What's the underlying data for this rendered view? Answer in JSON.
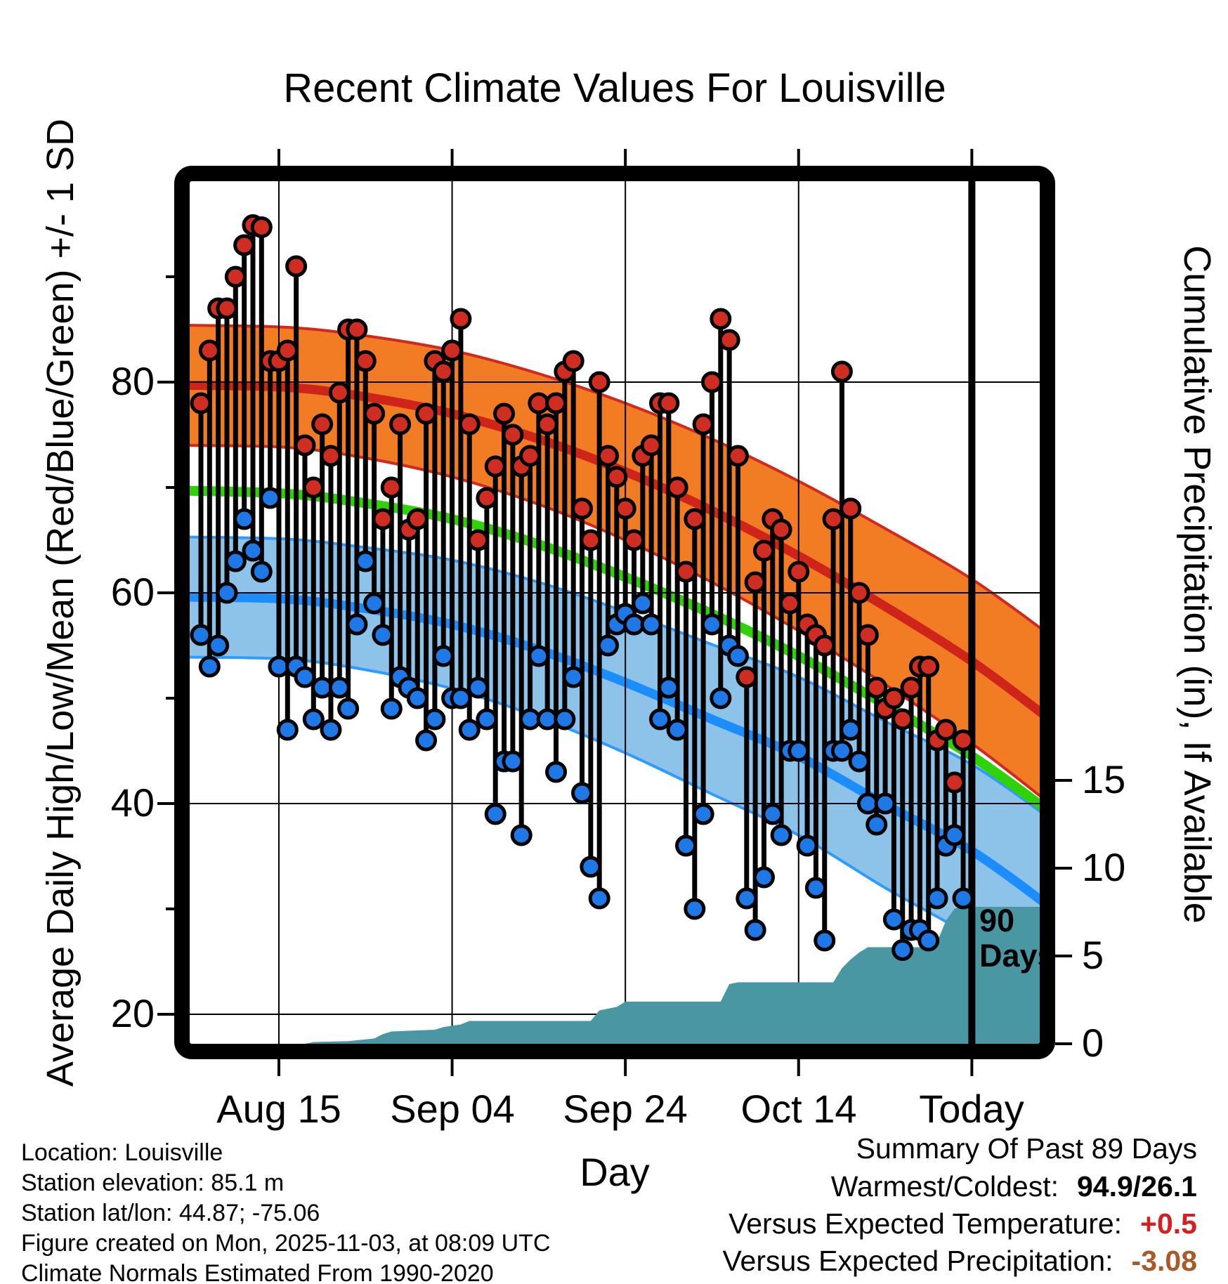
{
  "title": "Recent Climate Values For Louisville",
  "axes": {
    "y_left_title": "Average Daily High/Low/Mean (Red/Blue/Green) +/- 1 SD",
    "y_right_title": "Cumulative Precipitation (in), If Available",
    "x_title": "Day",
    "x_tick_labels": [
      "Aug 15",
      "Sep 04",
      "Sep 24",
      "Oct 14",
      "Today"
    ],
    "y_left_tick_labels": [
      "80",
      "60",
      "40",
      "20"
    ],
    "y_right_tick_labels": [
      "15",
      "10",
      "5",
      "0"
    ]
  },
  "annotation_90_days": {
    "line1": "90",
    "line2": "Days"
  },
  "footer_lines": [
    "Location: Louisville",
    "Station elevation: 85.1 m",
    "Station lat/lon: 44.87; -75.06",
    "Figure created on Mon, 2025-11-03, at 08:09 UTC",
    "Climate Normals Estimated From 1990-2020"
  ],
  "summary": {
    "heading": "Summary Of Past 89 Days",
    "warmest_coldest_label": "Warmest/Coldest:",
    "warmest_coldest_value": "94.9/26.1",
    "vs_temp_label": "Versus Expected Temperature:",
    "vs_temp_value": "+0.5",
    "vs_precip_label": "Versus Expected Precipitation:",
    "vs_precip_value": "-3.08"
  },
  "colors": {
    "high_band_fill": "#f27c24",
    "high_line": "#cf2419",
    "high_band_edge": "#d2281e",
    "mean_line": "#2fd305",
    "low_band_fill": "#8ec3e9",
    "low_line": "#1c8dfc",
    "low_band_edge": "#2f9bff",
    "precip_fill": "#4997a2",
    "dot_high": "#cf2d22",
    "dot_low": "#1e78e6",
    "stem": "#000000",
    "anomaly_warm": "#d42020",
    "anomaly_dry": "#a85a28"
  },
  "chart_data": {
    "type": "climate-stems+normal-bands+cumulative-precip-area",
    "x_axis": {
      "label": "Day",
      "tick_labels": [
        "Aug 15",
        "Sep 04",
        "Sep 24",
        "Oct 14",
        "Today"
      ],
      "span_days": 90
    },
    "y_temp_axis": {
      "ticks": [
        80,
        60,
        40,
        20
      ],
      "minor_ticks": [
        90,
        70,
        50,
        30
      ],
      "range": [
        17,
        99
      ]
    },
    "y_precip_axis": {
      "ticks": [
        15,
        10,
        5,
        0
      ],
      "units": "in"
    },
    "days": [
      {
        "date": "Aug 06",
        "high": 78,
        "low": 56
      },
      {
        "date": "Aug 07",
        "high": 83,
        "low": 53
      },
      {
        "date": "Aug 08",
        "high": 87,
        "low": 55
      },
      {
        "date": "Aug 09",
        "high": 87,
        "low": 60
      },
      {
        "date": "Aug 10",
        "high": 90,
        "low": 63
      },
      {
        "date": "Aug 11",
        "high": 93,
        "low": 67
      },
      {
        "date": "Aug 12",
        "high": 94.9,
        "low": 64
      },
      {
        "date": "Aug 13",
        "high": 94.7,
        "low": 62
      },
      {
        "date": "Aug 14",
        "high": 82,
        "low": 69
      },
      {
        "date": "Aug 15",
        "high": 82,
        "low": 53
      },
      {
        "date": "Aug 16",
        "high": 83,
        "low": 47
      },
      {
        "date": "Aug 17",
        "high": 91,
        "low": 53
      },
      {
        "date": "Aug 18",
        "high": 74,
        "low": 52
      },
      {
        "date": "Aug 19",
        "high": 70,
        "low": 48
      },
      {
        "date": "Aug 20",
        "high": 76,
        "low": 51
      },
      {
        "date": "Aug 21",
        "high": 73,
        "low": 47
      },
      {
        "date": "Aug 22",
        "high": 79,
        "low": 51
      },
      {
        "date": "Aug 23",
        "high": 85,
        "low": 49
      },
      {
        "date": "Aug 24",
        "high": 85,
        "low": 57
      },
      {
        "date": "Aug 25",
        "high": 82,
        "low": 63
      },
      {
        "date": "Aug 26",
        "high": 77,
        "low": 59
      },
      {
        "date": "Aug 27",
        "high": 67,
        "low": 56
      },
      {
        "date": "Aug 28",
        "high": 70,
        "low": 49
      },
      {
        "date": "Aug 29",
        "high": 76,
        "low": 52
      },
      {
        "date": "Aug 30",
        "high": 66,
        "low": 51
      },
      {
        "date": "Aug 31",
        "high": 67,
        "low": 50
      },
      {
        "date": "Sep 01",
        "high": 77,
        "low": 46
      },
      {
        "date": "Sep 02",
        "high": 82,
        "low": 48
      },
      {
        "date": "Sep 03",
        "high": 81,
        "low": 54
      },
      {
        "date": "Sep 04",
        "high": 83,
        "low": 50
      },
      {
        "date": "Sep 05",
        "high": 86,
        "low": 50
      },
      {
        "date": "Sep 06",
        "high": 76,
        "low": 47
      },
      {
        "date": "Sep 07",
        "high": 65,
        "low": 51
      },
      {
        "date": "Sep 08",
        "high": 69,
        "low": 48
      },
      {
        "date": "Sep 09",
        "high": 72,
        "low": 39
      },
      {
        "date": "Sep 10",
        "high": 77,
        "low": 44
      },
      {
        "date": "Sep 11",
        "high": 75,
        "low": 44
      },
      {
        "date": "Sep 12",
        "high": 72,
        "low": 37
      },
      {
        "date": "Sep 13",
        "high": 73,
        "low": 48
      },
      {
        "date": "Sep 14",
        "high": 78,
        "low": 54
      },
      {
        "date": "Sep 15",
        "high": 76,
        "low": 48
      },
      {
        "date": "Sep 16",
        "high": 78,
        "low": 43
      },
      {
        "date": "Sep 17",
        "high": 81,
        "low": 48
      },
      {
        "date": "Sep 18",
        "high": 82,
        "low": 52
      },
      {
        "date": "Sep 19",
        "high": 68,
        "low": 41
      },
      {
        "date": "Sep 20",
        "high": 65,
        "low": 34
      },
      {
        "date": "Sep 21",
        "high": 80,
        "low": 31
      },
      {
        "date": "Sep 22",
        "high": 73,
        "low": 55
      },
      {
        "date": "Sep 23",
        "high": 71,
        "low": 57
      },
      {
        "date": "Sep 24",
        "high": 68,
        "low": 58
      },
      {
        "date": "Sep 25",
        "high": 65,
        "low": 57
      },
      {
        "date": "Sep 26",
        "high": 73,
        "low": 59
      },
      {
        "date": "Sep 27",
        "high": 74,
        "low": 57
      },
      {
        "date": "Sep 28",
        "high": 78,
        "low": 48
      },
      {
        "date": "Sep 29",
        "high": 78,
        "low": 51
      },
      {
        "date": "Sep 30",
        "high": 70,
        "low": 47
      },
      {
        "date": "Oct 01",
        "high": 62,
        "low": 36
      },
      {
        "date": "Oct 02",
        "high": 67,
        "low": 30
      },
      {
        "date": "Oct 03",
        "high": 76,
        "low": 39
      },
      {
        "date": "Oct 04",
        "high": 80,
        "low": 57
      },
      {
        "date": "Oct 05",
        "high": 86,
        "low": 50
      },
      {
        "date": "Oct 06",
        "high": 84,
        "low": 55
      },
      {
        "date": "Oct 07",
        "high": 73,
        "low": 54
      },
      {
        "date": "Oct 08",
        "high": 52,
        "low": 31
      },
      {
        "date": "Oct 09",
        "high": 61,
        "low": 28
      },
      {
        "date": "Oct 10",
        "high": 64,
        "low": 33
      },
      {
        "date": "Oct 11",
        "high": 67,
        "low": 39
      },
      {
        "date": "Oct 12",
        "high": 66,
        "low": 37
      },
      {
        "date": "Oct 13",
        "high": 59,
        "low": 45
      },
      {
        "date": "Oct 14",
        "high": 62,
        "low": 45
      },
      {
        "date": "Oct 15",
        "high": 57,
        "low": 36
      },
      {
        "date": "Oct 16",
        "high": 56,
        "low": 32
      },
      {
        "date": "Oct 17",
        "high": 55,
        "low": 27
      },
      {
        "date": "Oct 18",
        "high": 67,
        "low": 45
      },
      {
        "date": "Oct 19",
        "high": 81,
        "low": 45
      },
      {
        "date": "Oct 20",
        "high": 68,
        "low": 47
      },
      {
        "date": "Oct 21",
        "high": 60,
        "low": 44
      },
      {
        "date": "Oct 22",
        "high": 56,
        "low": 40
      },
      {
        "date": "Oct 23",
        "high": 51,
        "low": 38
      },
      {
        "date": "Oct 24",
        "high": 49,
        "low": 40
      },
      {
        "date": "Oct 25",
        "high": 50,
        "low": 29
      },
      {
        "date": "Oct 26",
        "high": 48,
        "low": 26.1
      },
      {
        "date": "Oct 27",
        "high": 51,
        "low": 28
      },
      {
        "date": "Oct 28",
        "high": 53,
        "low": 28
      },
      {
        "date": "Oct 29",
        "high": 53,
        "low": 27
      },
      {
        "date": "Oct 30",
        "high": 46,
        "low": 31
      },
      {
        "date": "Oct 31",
        "high": 47,
        "low": 36
      },
      {
        "date": "Nov 01",
        "high": 42,
        "low": 37
      },
      {
        "date": "Nov 02",
        "high": 46,
        "low": 31
      }
    ],
    "normals": {
      "x_days": [
        -2,
        10,
        19,
        29,
        39,
        49,
        59,
        69,
        79,
        89,
        98
      ],
      "avg_high": [
        79.7,
        79.5,
        78.6,
        77.0,
        74.6,
        71.5,
        67.8,
        63.5,
        58.7,
        53.5,
        48.0
      ],
      "avg_mean": [
        69.7,
        69.4,
        68.5,
        67.0,
        64.6,
        61.5,
        58.0,
        54.0,
        49.4,
        44.5,
        39.2
      ],
      "avg_low": [
        59.6,
        59.4,
        58.5,
        57.0,
        54.6,
        51.5,
        48.0,
        44.5,
        39.9,
        35.5,
        30.2
      ],
      "sd_high": [
        5.7,
        5.7,
        5.8,
        6.0,
        6.2,
        6.5,
        6.8,
        7.1,
        7.4,
        7.8,
        8.0
      ],
      "sd_low": [
        5.7,
        5.7,
        5.8,
        6.1,
        6.4,
        6.7,
        7.1,
        7.5,
        7.9,
        8.2,
        8.4
      ]
    },
    "precip_cumulative": [
      [
        -2,
        0
      ],
      [
        12,
        0
      ],
      [
        13,
        0.1
      ],
      [
        17,
        0.15
      ],
      [
        20,
        0.3
      ],
      [
        21,
        0.55
      ],
      [
        22,
        0.7
      ],
      [
        27,
        0.8
      ],
      [
        28,
        0.95
      ],
      [
        30,
        1.1
      ],
      [
        31,
        1.3
      ],
      [
        45,
        1.3
      ],
      [
        46,
        1.9
      ],
      [
        48,
        2.1
      ],
      [
        49,
        2.4
      ],
      [
        60,
        2.4
      ],
      [
        61,
        3.4
      ],
      [
        62,
        3.5
      ],
      [
        73,
        3.5
      ],
      [
        74,
        4.3
      ],
      [
        75,
        4.8
      ],
      [
        76,
        5.2
      ],
      [
        77,
        5.5
      ],
      [
        83,
        5.5
      ],
      [
        84,
        5.7
      ],
      [
        85,
        5.8
      ],
      [
        86,
        7.0
      ],
      [
        87,
        7.7
      ],
      [
        88,
        7.8
      ],
      [
        97,
        7.8
      ]
    ],
    "today_day_index": 89
  }
}
